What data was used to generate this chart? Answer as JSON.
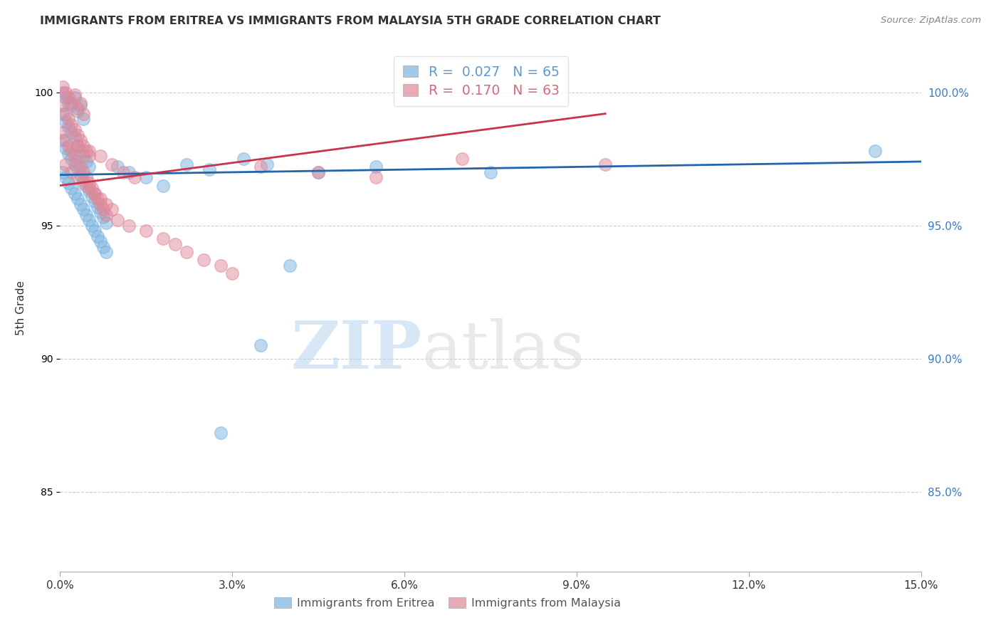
{
  "title": "IMMIGRANTS FROM ERITREA VS IMMIGRANTS FROM MALAYSIA 5TH GRADE CORRELATION CHART",
  "source": "Source: ZipAtlas.com",
  "ylabel": "5th Grade",
  "x_min": 0.0,
  "x_max": 15.0,
  "y_min": 82.0,
  "y_max": 101.8,
  "x_ticks": [
    0.0,
    3.0,
    6.0,
    9.0,
    12.0,
    15.0
  ],
  "x_tick_labels": [
    "0.0%",
    "3.0%",
    "6.0%",
    "9.0%",
    "12.0%",
    "15.0%"
  ],
  "y_ticks": [
    85.0,
    90.0,
    95.0,
    100.0
  ],
  "y_tick_labels": [
    "85.0%",
    "90.0%",
    "95.0%",
    "100.0%"
  ],
  "legend_entries": [
    {
      "label": "R =  0.027   N = 65",
      "color": "#5b9bd5"
    },
    {
      "label": "R =  0.170   N = 63",
      "color": "#d46a7a"
    }
  ],
  "blue_color": "#7ab3e0",
  "pink_color": "#e08898",
  "blue_line_color": "#2166ac",
  "pink_line_color": "#c9334e",
  "watermark_zip": "ZIP",
  "watermark_atlas": "atlas",
  "scatter_blue_x": [
    0.05,
    0.1,
    0.15,
    0.2,
    0.25,
    0.3,
    0.35,
    0.4,
    0.05,
    0.1,
    0.15,
    0.2,
    0.25,
    0.3,
    0.35,
    0.4,
    0.45,
    0.5,
    0.05,
    0.1,
    0.15,
    0.2,
    0.25,
    0.3,
    0.35,
    0.4,
    0.45,
    0.5,
    0.55,
    0.6,
    0.65,
    0.7,
    0.75,
    0.8,
    0.05,
    0.1,
    0.15,
    0.2,
    0.25,
    0.3,
    0.35,
    0.4,
    0.45,
    0.5,
    0.55,
    0.6,
    0.65,
    0.7,
    0.75,
    0.8,
    1.0,
    1.2,
    1.5,
    1.8,
    2.2,
    2.6,
    3.2,
    3.6,
    4.0,
    4.5,
    5.5,
    7.5,
    3.5,
    14.2,
    2.8
  ],
  "scatter_blue_y": [
    100.0,
    99.8,
    99.6,
    99.5,
    99.8,
    99.3,
    99.5,
    99.0,
    99.2,
    98.9,
    98.7,
    98.5,
    98.3,
    98.0,
    97.8,
    97.6,
    97.4,
    97.2,
    98.2,
    97.9,
    97.7,
    97.5,
    97.3,
    97.1,
    96.9,
    96.7,
    96.5,
    96.3,
    96.1,
    95.9,
    95.7,
    95.5,
    95.3,
    95.1,
    97.0,
    96.8,
    96.6,
    96.4,
    96.2,
    96.0,
    95.8,
    95.6,
    95.4,
    95.2,
    95.0,
    94.8,
    94.6,
    94.4,
    94.2,
    94.0,
    97.2,
    97.0,
    96.8,
    96.5,
    97.3,
    97.1,
    97.5,
    97.3,
    93.5,
    97.0,
    97.2,
    97.0,
    90.5,
    97.8,
    87.2
  ],
  "scatter_pink_x": [
    0.05,
    0.1,
    0.15,
    0.2,
    0.25,
    0.3,
    0.35,
    0.4,
    0.05,
    0.1,
    0.15,
    0.2,
    0.25,
    0.3,
    0.35,
    0.4,
    0.45,
    0.5,
    0.05,
    0.1,
    0.15,
    0.2,
    0.25,
    0.3,
    0.35,
    0.4,
    0.45,
    0.5,
    0.55,
    0.6,
    0.65,
    0.7,
    0.75,
    0.8,
    0.1,
    0.2,
    0.3,
    0.4,
    0.5,
    0.6,
    0.7,
    0.8,
    0.9,
    1.0,
    1.2,
    1.5,
    1.8,
    2.0,
    2.2,
    2.5,
    2.8,
    3.0,
    0.3,
    0.5,
    0.7,
    0.9,
    1.1,
    1.3,
    3.5,
    4.5,
    5.5,
    7.0,
    9.5
  ],
  "scatter_pink_y": [
    100.2,
    100.0,
    99.8,
    99.6,
    99.9,
    99.4,
    99.6,
    99.2,
    99.5,
    99.2,
    99.0,
    98.8,
    98.6,
    98.4,
    98.2,
    98.0,
    97.8,
    97.6,
    98.5,
    98.2,
    98.0,
    97.8,
    97.6,
    97.4,
    97.2,
    97.0,
    96.8,
    96.6,
    96.4,
    96.2,
    96.0,
    95.8,
    95.6,
    95.4,
    97.3,
    97.0,
    96.8,
    96.6,
    96.4,
    96.2,
    96.0,
    95.8,
    95.6,
    95.2,
    95.0,
    94.8,
    94.5,
    94.3,
    94.0,
    93.7,
    93.5,
    93.2,
    98.0,
    97.8,
    97.6,
    97.3,
    97.0,
    96.8,
    97.2,
    97.0,
    96.8,
    97.5,
    97.3
  ],
  "blue_trend_x": [
    0.0,
    15.0
  ],
  "blue_trend_y": [
    96.9,
    97.4
  ],
  "pink_trend_x": [
    0.0,
    9.5
  ],
  "pink_trend_y": [
    96.5,
    99.2
  ],
  "grid_color": "#cccccc",
  "background_color": "#ffffff"
}
